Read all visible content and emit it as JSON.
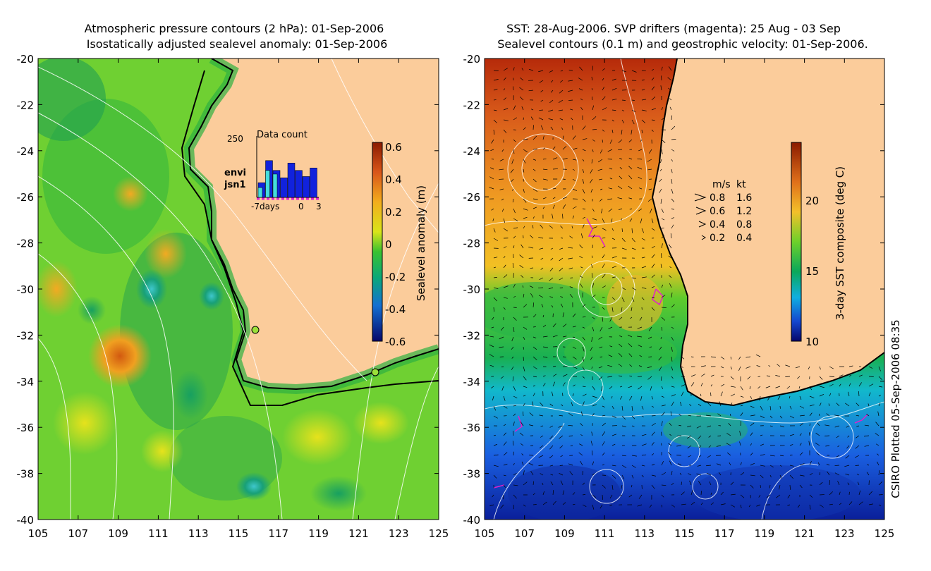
{
  "left_panel": {
    "title_line1": "Atmospheric pressure contours (2 hPa): 01-Sep-2006",
    "title_line2": "Isostatically adjusted sealevel anomaly: 01-Sep-2006",
    "y_ticks": [
      "-20",
      "-22",
      "-24",
      "-26",
      "-28",
      "-30",
      "-32",
      "-34",
      "-36",
      "-38",
      "-40"
    ],
    "x_ticks": [
      "105",
      "107",
      "109",
      "111",
      "113",
      "115",
      "117",
      "119",
      "121",
      "123",
      "125"
    ],
    "inset": {
      "title": "Data count",
      "max_label": "250",
      "x_label_left": "-7days",
      "x_label_zero": "0",
      "x_label_right": "3",
      "legend_envi": "envi",
      "legend_jsn1": "jsn1",
      "envi_color": "#44dddd",
      "jsn1_color": "#1122dd",
      "bars": [
        {
          "day": -6,
          "envi": 40,
          "jsn1": 60
        },
        {
          "day": -5,
          "envi": 110,
          "jsn1": 150
        },
        {
          "day": -4,
          "envi": 95,
          "jsn1": 110
        },
        {
          "day": -3,
          "envi": 0,
          "jsn1": 80
        },
        {
          "day": -2,
          "envi": 0,
          "jsn1": 140
        },
        {
          "day": -1,
          "envi": 0,
          "jsn1": 110
        },
        {
          "day": 0,
          "envi": 0,
          "jsn1": 85
        },
        {
          "day": 1,
          "envi": 0,
          "jsn1": 120
        }
      ]
    },
    "colorbar": {
      "label": "Sealevel anomaly (m)",
      "ticks": [
        "0.6",
        "0.4",
        "0.2",
        "0",
        "-0.2",
        "-0.4",
        "-0.6"
      ]
    }
  },
  "right_panel": {
    "title_line1": "SST: 28-Aug-2006. SVP drifters (magenta): 25 Aug - 03 Sep",
    "title_line2": "Sealevel contours (0.1 m) and geostrophic velocity: 01-Sep-2006.",
    "y_ticks": [
      "-20",
      "-22",
      "-24",
      "-26",
      "-28",
      "-30",
      "-32",
      "-34",
      "-36",
      "-38",
      "-40"
    ],
    "x_ticks": [
      "105",
      "107",
      "109",
      "111",
      "113",
      "115",
      "117",
      "119",
      "121",
      "123",
      "125"
    ],
    "velocity_legend": {
      "header_ms": "m/s",
      "header_kt": "kt",
      "rows": [
        {
          "ms": "0.8",
          "kt": "1.6"
        },
        {
          "ms": "0.6",
          "kt": "1.2"
        },
        {
          "ms": "0.4",
          "kt": "0.8"
        },
        {
          "ms": "0.2",
          "kt": "0.4"
        }
      ]
    },
    "colorbar": {
      "label": "3-day SST composite (deg C)",
      "ticks": [
        "20",
        "15",
        "10"
      ]
    }
  },
  "footer": {
    "credit": "CSIRO Plotted 05-Sep-2006 08:35"
  },
  "colors": {
    "land": "#fbcc9b",
    "coast": "#000000",
    "contour": "#ffffff",
    "drifter": "#dd22cc"
  }
}
